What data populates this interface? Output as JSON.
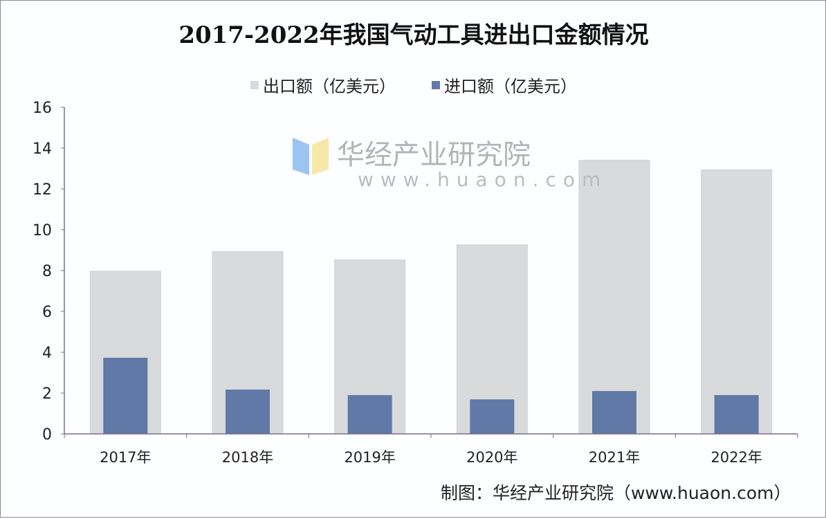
{
  "chart_data": {
    "type": "bar",
    "title": "2017-2022年我国气动工具进出口金额情况",
    "categories": [
      "2017年",
      "2018年",
      "2019年",
      "2020年",
      "2021年",
      "2022年"
    ],
    "series": [
      {
        "name": "出口额（亿美元）",
        "values": [
          7.97,
          8.93,
          8.52,
          9.26,
          13.4,
          12.94
        ],
        "color": "#d9dadc"
      },
      {
        "name": "进口额（亿美元）",
        "values": [
          3.73,
          2.17,
          1.9,
          1.69,
          2.1,
          1.9
        ],
        "color": "#6079a6"
      }
    ],
    "xlabel": "",
    "ylabel": "",
    "ylim": [
      0,
      16
    ],
    "yticks": [
      "0",
      "2",
      "4",
      "6",
      "8",
      "10",
      "12",
      "14",
      "16"
    ],
    "grid": false,
    "legend_position": "top",
    "overlapping_bars": true
  },
  "source": "制图：华经产业研究院（www.huaon.com）",
  "watermark": {
    "name": "华经产业研究院",
    "url": "www.huaon.com"
  }
}
